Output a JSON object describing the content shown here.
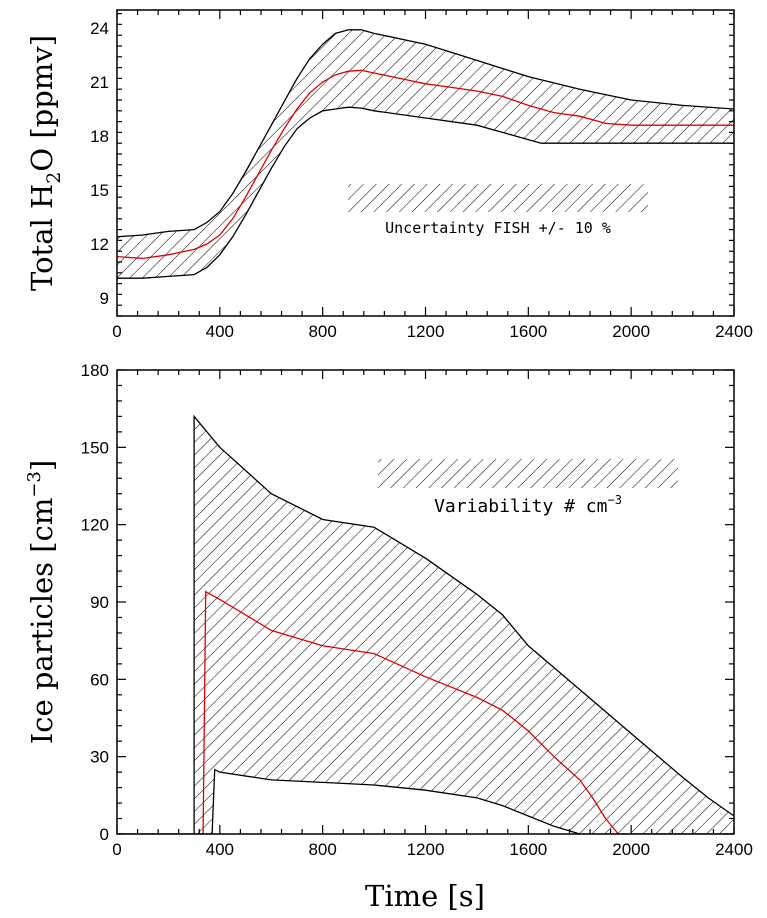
{
  "chart_data": [
    {
      "type": "area",
      "xlim": [
        0,
        2400
      ],
      "ylim": [
        8,
        25
      ],
      "x_ticks": [
        0,
        400,
        800,
        1200,
        1600,
        2000,
        2400
      ],
      "y_ticks": [
        9,
        12,
        15,
        18,
        21,
        24
      ],
      "ylabel": {
        "main": "Total H",
        "sub": "2",
        "rest": "O [ppmv]"
      },
      "annotation": "Uncertainty FISH +/- 10 %",
      "colors": {
        "line": "#e00000",
        "band": "#000000"
      },
      "series": [
        {
          "name": "upper",
          "x": [
            0,
            100,
            200,
            300,
            350,
            400,
            450,
            500,
            550,
            600,
            650,
            700,
            750,
            800,
            850,
            900,
            950,
            1000,
            1200,
            1400,
            1600,
            1800,
            2000,
            2200,
            2400
          ],
          "values": [
            12.4,
            12.5,
            12.7,
            12.8,
            13.2,
            13.8,
            14.8,
            16.0,
            17.3,
            18.6,
            19.9,
            21.2,
            22.3,
            23.1,
            23.7,
            23.9,
            23.9,
            23.7,
            23.1,
            22.2,
            21.3,
            20.6,
            20.0,
            19.7,
            19.5
          ]
        },
        {
          "name": "mean",
          "x": [
            0,
            100,
            200,
            300,
            350,
            400,
            450,
            500,
            550,
            600,
            650,
            700,
            750,
            800,
            850,
            900,
            950,
            1000,
            1100,
            1200,
            1300,
            1400,
            1500,
            1600,
            1700,
            1800,
            1900,
            2000,
            2200,
            2400
          ],
          "values": [
            11.3,
            11.2,
            11.4,
            11.7,
            12.0,
            12.5,
            13.4,
            14.6,
            15.9,
            17.2,
            18.4,
            19.5,
            20.4,
            21.0,
            21.4,
            21.6,
            21.65,
            21.5,
            21.2,
            20.9,
            20.7,
            20.5,
            20.2,
            19.7,
            19.3,
            19.1,
            18.7,
            18.6,
            18.6,
            18.6
          ]
        },
        {
          "name": "lower",
          "x": [
            0,
            100,
            200,
            300,
            350,
            400,
            450,
            500,
            550,
            600,
            650,
            700,
            750,
            800,
            850,
            900,
            950,
            1000,
            1200,
            1400,
            1600,
            1650,
            1800,
            2000,
            2200,
            2400
          ],
          "values": [
            10.1,
            10.1,
            10.2,
            10.3,
            10.7,
            11.4,
            12.4,
            13.6,
            14.9,
            16.2,
            17.4,
            18.4,
            19.0,
            19.4,
            19.5,
            19.6,
            19.55,
            19.4,
            19.0,
            18.6,
            17.8,
            17.6,
            17.6,
            17.6,
            17.6,
            17.6
          ]
        }
      ]
    },
    {
      "type": "area",
      "xlim": [
        0,
        2400
      ],
      "ylim": [
        0,
        180
      ],
      "x_ticks": [
        0,
        400,
        800,
        1200,
        1600,
        2000,
        2400
      ],
      "y_ticks": [
        0,
        30,
        60,
        90,
        120,
        150,
        180
      ],
      "xlabel": "Time [s]",
      "ylabel": {
        "main": "Ice particles [cm",
        "sup": "−3",
        "rest": "]"
      },
      "annotation": {
        "main": "Variability # cm",
        "sup": "−3"
      },
      "colors": {
        "line": "#e00000",
        "band": "#000000"
      },
      "series": [
        {
          "name": "upper",
          "x": [
            300,
            400,
            600,
            800,
            1000,
            1200,
            1400,
            1500,
            1600,
            1800,
            2000,
            2200,
            2300,
            2400
          ],
          "values": [
            162,
            150,
            132,
            122,
            119,
            107,
            93,
            85,
            73,
            56,
            39,
            22,
            14,
            7
          ]
        },
        {
          "name": "mean",
          "x": [
            0,
            335,
            345,
            400,
            600,
            800,
            1000,
            1200,
            1400,
            1500,
            1600,
            1700,
            1800,
            1850,
            1900,
            1950,
            2400
          ],
          "values": [
            0,
            0,
            94,
            91,
            79,
            73,
            70,
            61,
            53,
            48,
            40,
            30,
            21,
            14,
            6,
            0,
            0
          ]
        },
        {
          "name": "lower",
          "x": [
            0,
            300,
            370,
            380,
            400,
            600,
            800,
            1000,
            1200,
            1400,
            1500,
            1600,
            1700,
            1800,
            2400
          ],
          "values": [
            0,
            0,
            0,
            25,
            24,
            21,
            20,
            19,
            17,
            14,
            11,
            7,
            3,
            0,
            0
          ]
        }
      ]
    }
  ]
}
